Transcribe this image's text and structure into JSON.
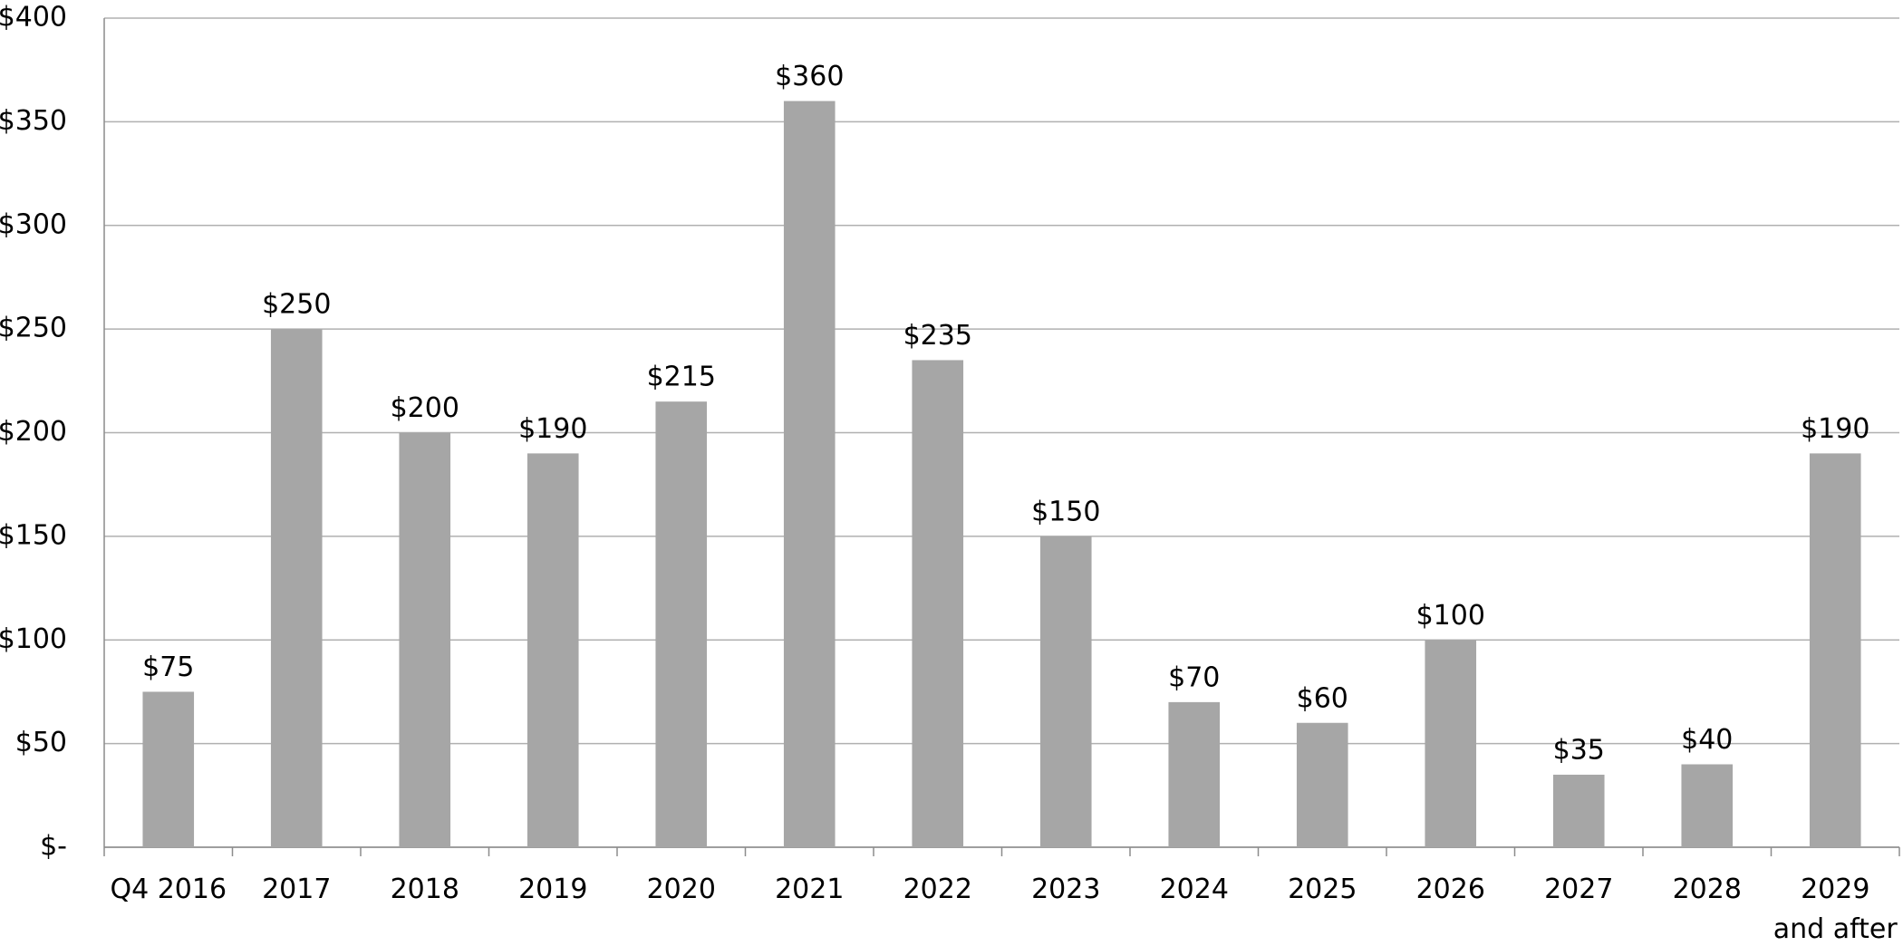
{
  "chart_data": {
    "type": "bar",
    "categories": [
      "Q4 2016",
      "2017",
      "2018",
      "2019",
      "2020",
      "2021",
      "2022",
      "2023",
      "2024",
      "2025",
      "2026",
      "2027",
      "2028",
      "2029 and after"
    ],
    "values": [
      75,
      250,
      200,
      190,
      215,
      360,
      235,
      150,
      70,
      60,
      100,
      35,
      40,
      190
    ],
    "value_labels": [
      "$75",
      "$250",
      "$200",
      "$190",
      "$215",
      "$360",
      "$235",
      "$150",
      "$70",
      "$60",
      "$100",
      "$35",
      "$40",
      "$190"
    ],
    "color": "#a6a6a6",
    "ylim": [
      0,
      400
    ],
    "yticks": [
      {
        "value": 0,
        "label": "$-"
      },
      {
        "value": 50,
        "label": "$50"
      },
      {
        "value": 100,
        "label": "$100"
      },
      {
        "value": 150,
        "label": "$150"
      },
      {
        "value": 200,
        "label": "$200"
      },
      {
        "value": 250,
        "label": "$250"
      },
      {
        "value": 300,
        "label": "$300"
      },
      {
        "value": 350,
        "label": "$350"
      },
      {
        "value": 400,
        "label": "$400"
      }
    ],
    "grid": true
  }
}
